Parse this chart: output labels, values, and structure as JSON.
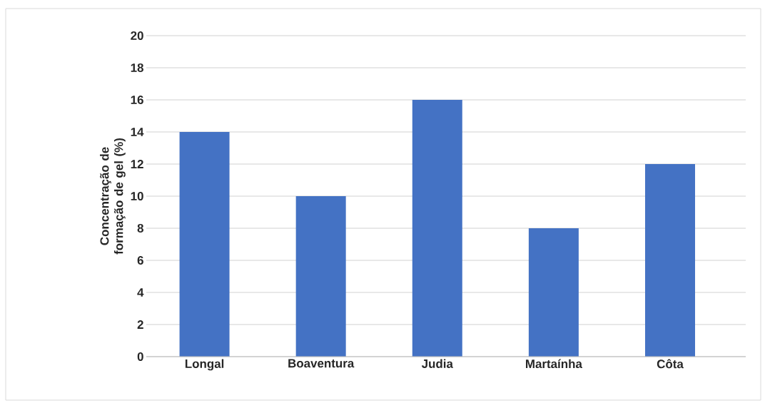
{
  "chart_data": {
    "type": "bar",
    "ylabel": "Concentração de formação de gel (%)",
    "categories": [
      "Longal",
      "Boaventura",
      "Judia",
      "Martaínha",
      "Côta"
    ],
    "values": [
      14,
      10,
      16,
      8,
      12
    ],
    "color": "#4472c4",
    "ylim": [
      0,
      20
    ],
    "yticks": [
      0,
      2,
      4,
      6,
      8,
      10,
      12,
      14,
      16,
      18,
      20
    ],
    "grid": "y"
  }
}
